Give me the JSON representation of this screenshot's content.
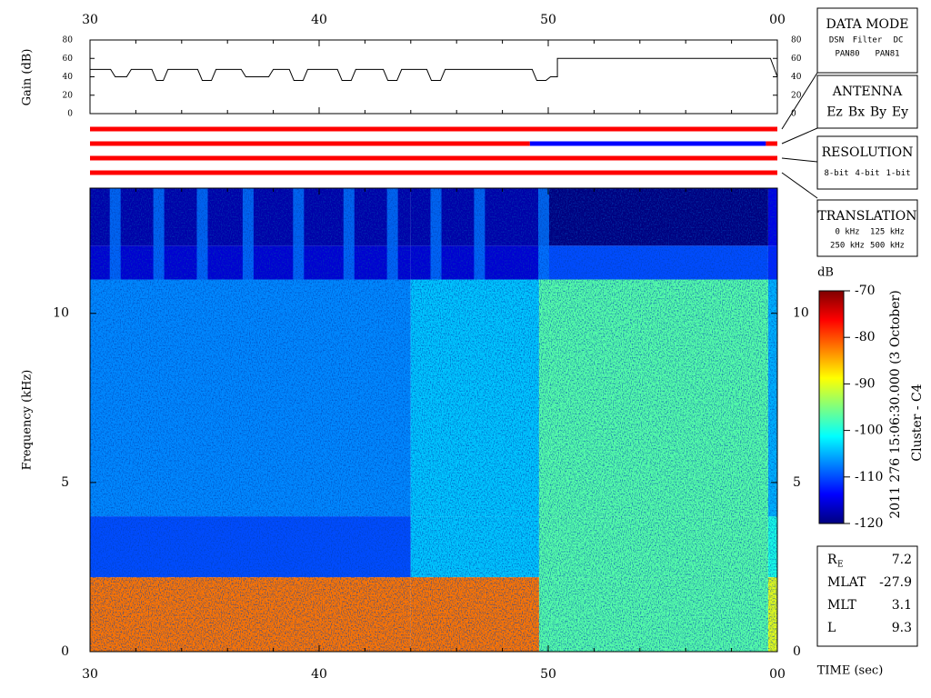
{
  "chart_data": [
    {
      "type": "line",
      "ylabel": "Gain (dB)",
      "xlim": [
        30,
        60
      ],
      "xticks": [
        30,
        40,
        50,
        {
          "value": 60,
          "label": "00"
        }
      ],
      "xticks_minor": [
        32,
        34,
        36,
        38,
        42,
        44,
        46,
        48,
        52,
        54,
        56,
        58
      ],
      "ylim": [
        0,
        80
      ],
      "yticks": [
        0,
        20,
        40,
        60,
        80
      ],
      "color": "#000000",
      "x": [
        30,
        30.9,
        31.1,
        31.6,
        31.8,
        32.7,
        32.9,
        33.2,
        33.4,
        34.7,
        34.9,
        35.3,
        35.5,
        36.6,
        36.8,
        37.8,
        38.0,
        38.7,
        38.9,
        39.3,
        39.5,
        40.8,
        41.0,
        41.4,
        41.6,
        42.8,
        43.0,
        43.4,
        43.6,
        44.7,
        44.9,
        45.3,
        45.5,
        49.3,
        49.5,
        49.9,
        50.1,
        50.4,
        50.4,
        59.7,
        60
      ],
      "values": [
        48,
        48,
        40,
        40,
        48,
        48,
        36,
        36,
        48,
        48,
        36,
        36,
        48,
        48,
        40,
        40,
        48,
        48,
        36,
        36,
        48,
        48,
        36,
        36,
        48,
        48,
        36,
        36,
        48,
        48,
        36,
        36,
        48,
        48,
        36,
        36,
        40,
        40,
        60,
        60,
        40
      ]
    },
    {
      "type": "status",
      "xlim": [
        30,
        60
      ],
      "bars": [
        {
          "segments": [
            {
              "x": [
                30,
                60
              ],
              "color": "#ff0000"
            }
          ]
        },
        {
          "segments": [
            {
              "x": [
                30,
                49.2
              ],
              "color": "#ff0000"
            },
            {
              "x": [
                49.2,
                59.5
              ],
              "color": "#0000ff"
            },
            {
              "x": [
                59.5,
                60
              ],
              "color": "#ff0000"
            }
          ]
        },
        {
          "segments": [
            {
              "x": [
                30,
                60
              ],
              "color": "#ff0000"
            }
          ]
        },
        {
          "segments": [
            {
              "x": [
                30,
                60
              ],
              "color": "#ff0000"
            }
          ]
        }
      ]
    },
    {
      "type": "spectrogram",
      "ylabel": "Frequency (kHz)",
      "xlabel": "TIME (sec)",
      "xlim": [
        30,
        60
      ],
      "xticks": [
        30,
        40,
        50,
        {
          "value": 60,
          "label": "00"
        }
      ],
      "xticks_minor": [
        32,
        34,
        36,
        38,
        42,
        44,
        46,
        48,
        52,
        54,
        56,
        58
      ],
      "ylim": [
        0,
        13.7
      ],
      "yticks": [
        0,
        5,
        10
      ],
      "x_edges": [
        30,
        44,
        49.6,
        59.6,
        60
      ],
      "y_edges": [
        0,
        2.2,
        4,
        11,
        12,
        13.7
      ],
      "values": [
        [
          -82,
          -82,
          -97,
          -90
        ],
        [
          -110,
          -104,
          -97,
          -100
        ],
        [
          -107,
          -104,
          -97,
          -105
        ],
        [
          -116,
          -116,
          -110,
          -112
        ],
        [
          -118,
          -118,
          -120,
          -115
        ]
      ],
      "bursts": {
        "x": [
          31.1,
          33.0,
          34.9,
          36.9,
          39.1,
          41.3,
          43.2,
          45.1,
          47.0,
          49.8
        ],
        "value": -108
      },
      "colorbar": {
        "label": "dB",
        "lim": [
          -120,
          -70
        ],
        "ticks": [
          -70,
          -80,
          -90,
          -100,
          -110,
          -120
        ],
        "colormap": [
          "#00007f",
          "#0000ff",
          "#007fff",
          "#00ffff",
          "#7fff7f",
          "#ffff00",
          "#ff7f00",
          "#ff0000",
          "#7f0000"
        ]
      }
    }
  ],
  "panels": [
    {
      "title": "DATA MODE",
      "rows": [
        [
          {
            "text": "DSN",
            "color": "#ff0000"
          },
          {
            "text": "Filter",
            "color": "#00cc00"
          },
          {
            "text": "DC",
            "color": "#0000ff"
          }
        ],
        [
          {
            "text": "PAN80",
            "color": "#000000"
          },
          {
            "text": "PAN81",
            "color": "#00cccc"
          }
        ]
      ]
    },
    {
      "title": "ANTENNA",
      "rows": [
        [
          {
            "text": "Ez",
            "color": "#ff0000"
          },
          {
            "text": "Bx",
            "color": "#00cc00"
          },
          {
            "text": "By",
            "color": "#0000ff"
          },
          {
            "text": "Ey",
            "color": "#000000"
          }
        ]
      ]
    },
    {
      "title": "RESOLUTION",
      "rows": [
        [
          {
            "text": "8-bit",
            "color": "#ff0000"
          },
          {
            "text": "4-bit",
            "color": "#00cc00"
          },
          {
            "text": "1-bit",
            "color": "#0000ff"
          }
        ]
      ]
    },
    {
      "title": "TRANSLATION",
      "rows": [
        [
          {
            "text": "0 kHz",
            "color": "#ff0000"
          },
          {
            "text": "125 kHz",
            "color": "#00cc00"
          }
        ],
        [
          {
            "text": "250 kHz",
            "color": "#0000ff"
          },
          {
            "text": "500 kHz",
            "color": "#000000"
          }
        ]
      ]
    }
  ],
  "annotation": {
    "date": "2011 276 15:06:30.000 (3 October)",
    "spacecraft": "Cluster - C4"
  },
  "orbit": [
    {
      "label": "R",
      "subscript": "E",
      "value": 7.2
    },
    {
      "label": "MLAT",
      "value": -27.9
    },
    {
      "label": "MLT",
      "value": 3.1
    },
    {
      "label": "L",
      "value": 9.3
    }
  ]
}
